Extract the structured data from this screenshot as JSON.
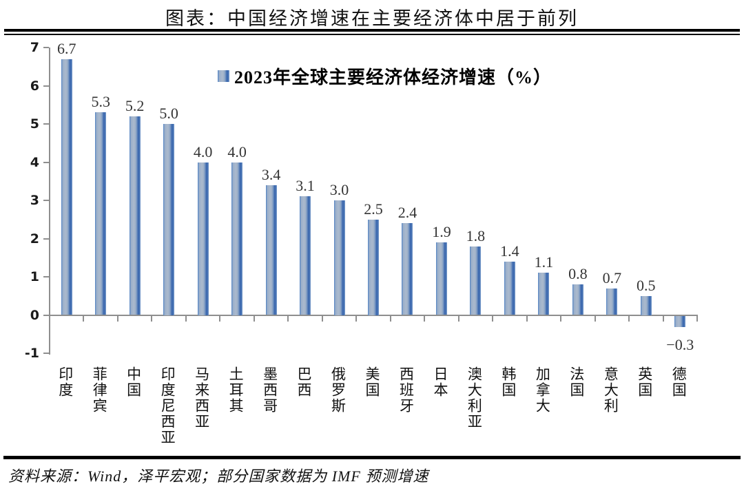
{
  "title": "图表：中国经济增速在主要经济体中居于前列",
  "footer": "资料来源：Wind，泽平宏观；部分国家数据为 IMF 预测增速",
  "colors": {
    "bar_light": "#abbacd",
    "bar_dark": "#3c68ae",
    "bar_edge": "#4a7ec2",
    "axis": "#8e8e8e",
    "value_label": "#333333",
    "rule": "#000000"
  },
  "chart_data": {
    "type": "bar",
    "title": "2023年全球主要经济体经济增速（%）",
    "categories": [
      "印度",
      "菲律宾",
      "中国",
      "印度尼西亚",
      "马来西亚",
      "土耳其",
      "墨西哥",
      "巴西",
      "俄罗斯",
      "美国",
      "西班牙",
      "日本",
      "澳大利亚",
      "韩国",
      "加拿大",
      "法国",
      "意大利",
      "英国",
      "德国"
    ],
    "values": [
      6.7,
      5.3,
      5.2,
      5.0,
      4.0,
      4.0,
      3.4,
      3.1,
      3.0,
      2.5,
      2.4,
      1.9,
      1.8,
      1.4,
      1.1,
      0.8,
      0.7,
      0.5,
      -0.3
    ],
    "data_labels": [
      "6.7",
      "5.3",
      "5.2",
      "5.0",
      "4.0",
      "4.0",
      "3.4",
      "3.1",
      "3.0",
      "2.5",
      "2.4",
      "1.9",
      "1.8",
      "1.4",
      "1.1",
      "0.8",
      "0.7",
      "0.5",
      "−0.3"
    ],
    "xlabel": "",
    "ylabel": "",
    "ylim": [
      -1,
      7
    ],
    "yticks": [
      7,
      6,
      5,
      4,
      3,
      2,
      1,
      0,
      -1
    ],
    "grid": false,
    "legend_position": "top-center"
  }
}
